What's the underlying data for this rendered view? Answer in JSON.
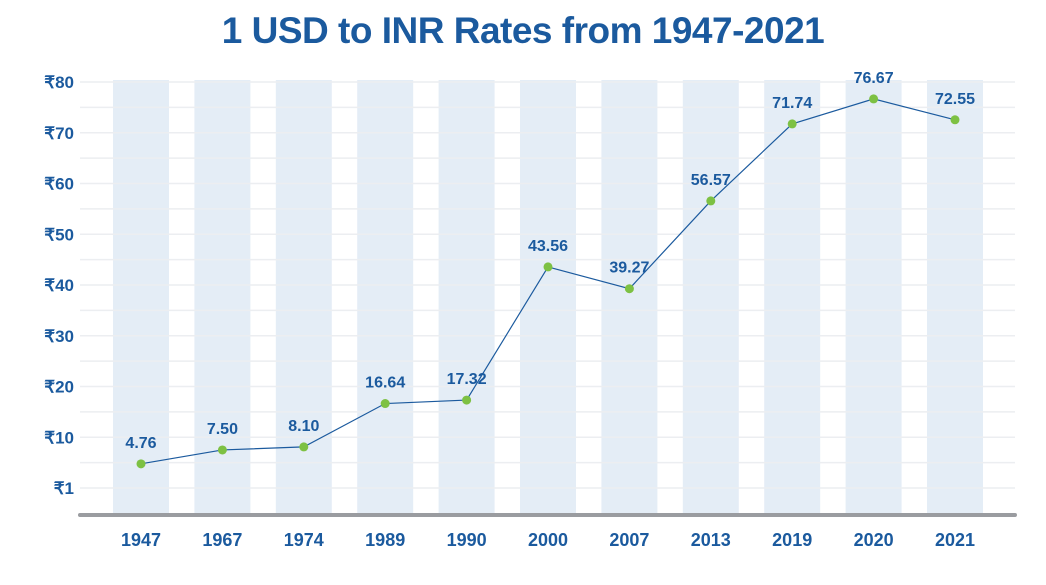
{
  "chart_data": {
    "type": "line",
    "title": "1 USD to INR Rates from 1947-2021",
    "xlabel": "",
    "ylabel": "",
    "categories": [
      "1947",
      "1967",
      "1974",
      "1989",
      "1990",
      "2000",
      "2007",
      "2013",
      "2019",
      "2020",
      "2021"
    ],
    "values": [
      4.76,
      7.5,
      8.1,
      16.64,
      17.32,
      43.56,
      39.27,
      56.57,
      71.74,
      76.67,
      72.55
    ],
    "data_labels": [
      "4.76",
      "7.50",
      "8.10",
      "16.64",
      "17.32",
      "43.56",
      "39.27",
      "56.57",
      "71.74",
      "76.67",
      "72.55"
    ],
    "y_ticks": [
      1,
      10,
      20,
      30,
      40,
      50,
      60,
      70,
      80
    ],
    "y_tick_labels": [
      "₹1",
      "₹10",
      "₹20",
      "₹30",
      "₹40",
      "₹50",
      "₹60",
      "₹70",
      "₹80"
    ],
    "ylim": [
      -5,
      80
    ],
    "grid": true,
    "colors": {
      "title": "#1b5a9e",
      "line": "#1b5a9e",
      "marker": "#7dc143",
      "band": "#e4edf6",
      "grid": "#eceef1",
      "axis": "#9a9ca0"
    }
  }
}
